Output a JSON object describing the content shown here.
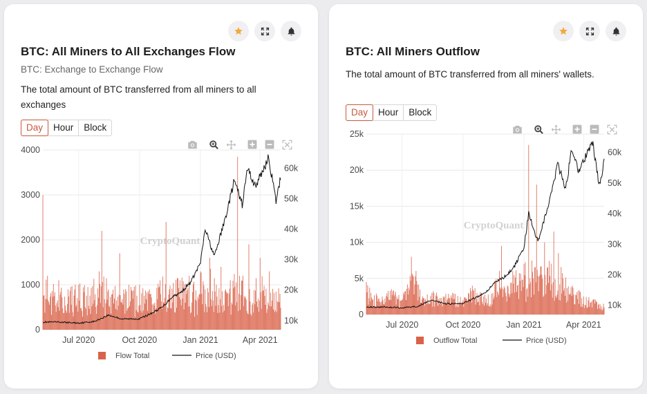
{
  "colors": {
    "bar": "#d9634a",
    "price_line": "#111111",
    "accent": "#c9583c",
    "star": "#f2a93b"
  },
  "header_icons": [
    "star-icon",
    "expand-icon",
    "bell-icon"
  ],
  "modebar_icons": [
    "camera-icon",
    "zoom-icon",
    "pan-icon",
    "zoom-in-icon",
    "zoom-out-icon",
    "autoscale-icon"
  ],
  "cards": [
    {
      "title": "BTC: All Miners to All Exchanges Flow",
      "subtitle": "BTC: Exchange to Exchange Flow",
      "description": "The total amount of BTC transferred from all miners to all exchanges",
      "tabs": [
        "Day",
        "Hour",
        "Block"
      ],
      "active_tab": "Day",
      "watermark": "CryptoQuant",
      "legend": [
        "Flow Total",
        "Price (USD)"
      ],
      "x_ticks": [
        "Jul 2020",
        "Oct 2020",
        "Jan 2021",
        "Apr 2021"
      ],
      "y_left_ticks": [
        "0",
        "1000",
        "2000",
        "3000",
        "4000"
      ],
      "y_right_ticks": [
        "10k",
        "20k",
        "30k",
        "40k",
        "50k",
        "60k"
      ]
    },
    {
      "title": "BTC: All Miners Outflow",
      "subtitle": "",
      "description": "The total amount of BTC transferred from all miners' wallets.",
      "tabs": [
        "Day",
        "Hour",
        "Block"
      ],
      "active_tab": "Day",
      "watermark": "CryptoQuant",
      "legend": [
        "Outflow Total",
        "Price (USD)"
      ],
      "x_ticks": [
        "Jul 2020",
        "Oct 2020",
        "Jan 2021",
        "Apr 2021"
      ],
      "y_left_ticks": [
        "0",
        "5k",
        "10k",
        "15k",
        "20k",
        "25k"
      ],
      "y_right_ticks": [
        "10k",
        "20k",
        "30k",
        "40k",
        "50k",
        "60k"
      ]
    }
  ],
  "chart_data": [
    {
      "type": "bar",
      "title": "BTC: All Miners to All Exchanges Flow",
      "x_range": [
        "2020-05-08",
        "2021-05-02"
      ],
      "ylim": [
        0,
        4000
      ],
      "y2lim": [
        7000,
        66000
      ],
      "grid": true,
      "legend_position": "bottom",
      "series": [
        {
          "name": "Flow Total",
          "kind": "bar",
          "axis": "left",
          "x": [
            "2020-05-08",
            "2020-05-15",
            "2020-06-01",
            "2020-06-15",
            "2020-07-01",
            "2020-07-15",
            "2020-08-01",
            "2020-08-05",
            "2020-08-15",
            "2020-09-01",
            "2020-09-08",
            "2020-09-15",
            "2020-10-01",
            "2020-10-15",
            "2020-11-01",
            "2020-11-10",
            "2020-11-15",
            "2020-12-01",
            "2020-12-15",
            "2021-01-01",
            "2021-01-08",
            "2021-01-15",
            "2021-02-01",
            "2021-02-08",
            "2021-02-15",
            "2021-02-26",
            "2021-03-01",
            "2021-03-15",
            "2021-04-01",
            "2021-04-15",
            "2021-05-01"
          ],
          "values": [
            3000,
            1200,
            1100,
            900,
            1000,
            950,
            1300,
            2200,
            900,
            1700,
            800,
            1000,
            1000,
            800,
            1100,
            2400,
            900,
            1100,
            1200,
            1300,
            900,
            1600,
            1400,
            900,
            1100,
            3850,
            1200,
            1900,
            1600,
            1300,
            800
          ]
        },
        {
          "name": "Price (USD)",
          "kind": "line",
          "axis": "right",
          "x": [
            "2020-05-08",
            "2020-06-01",
            "2020-07-01",
            "2020-07-25",
            "2020-08-15",
            "2020-09-05",
            "2020-10-01",
            "2020-10-20",
            "2020-11-05",
            "2020-11-20",
            "2020-12-01",
            "2020-12-17",
            "2021-01-01",
            "2021-01-08",
            "2021-01-22",
            "2021-02-08",
            "2021-02-21",
            "2021-03-05",
            "2021-03-13",
            "2021-03-25",
            "2021-04-14",
            "2021-04-25",
            "2021-05-02"
          ],
          "values": [
            9500,
            9500,
            9200,
            9700,
            11800,
            10500,
            10600,
            12500,
            14500,
            18000,
            19000,
            22500,
            29000,
            40000,
            31000,
            44000,
            56000,
            48000,
            60000,
            54000,
            63500,
            49000,
            57000
          ]
        }
      ]
    },
    {
      "type": "bar",
      "title": "BTC: All Miners Outflow",
      "x_range": [
        "2020-05-08",
        "2021-05-02"
      ],
      "ylim": [
        0,
        25000
      ],
      "y2lim": [
        7000,
        66000
      ],
      "grid": true,
      "legend_position": "bottom",
      "series": [
        {
          "name": "Outflow Total",
          "kind": "bar",
          "axis": "left",
          "x": [
            "2020-05-08",
            "2020-05-15",
            "2020-06-01",
            "2020-06-15",
            "2020-07-01",
            "2020-07-15",
            "2020-08-01",
            "2020-08-15",
            "2020-09-01",
            "2020-09-15",
            "2020-10-01",
            "2020-10-15",
            "2020-11-01",
            "2020-11-15",
            "2020-11-28",
            "2020-12-01",
            "2020-12-15",
            "2021-01-01",
            "2021-01-08",
            "2021-01-15",
            "2021-01-20",
            "2021-02-01",
            "2021-02-05",
            "2021-02-15",
            "2021-02-22",
            "2021-03-01",
            "2021-03-15",
            "2021-04-01",
            "2021-04-15",
            "2021-05-01"
          ],
          "values": [
            4500,
            3000,
            2500,
            3500,
            2000,
            8000,
            2500,
            3000,
            2500,
            3000,
            2000,
            4000,
            2500,
            3000,
            9500,
            3500,
            6000,
            7000,
            23500,
            5000,
            18000,
            10000,
            6500,
            11500,
            8500,
            5000,
            4000,
            2500,
            2000,
            1500
          ]
        },
        {
          "name": "Price (USD)",
          "kind": "line",
          "axis": "right",
          "x": [
            "2020-05-08",
            "2020-06-01",
            "2020-07-01",
            "2020-07-25",
            "2020-08-15",
            "2020-09-05",
            "2020-10-01",
            "2020-10-20",
            "2020-11-05",
            "2020-11-20",
            "2020-12-01",
            "2020-12-17",
            "2021-01-01",
            "2021-01-08",
            "2021-01-22",
            "2021-02-08",
            "2021-02-21",
            "2021-03-05",
            "2021-03-13",
            "2021-03-25",
            "2021-04-14",
            "2021-04-25",
            "2021-05-02"
          ],
          "values": [
            9500,
            9500,
            9200,
            9700,
            11800,
            10500,
            10600,
            12500,
            14500,
            18000,
            19000,
            22500,
            29000,
            40000,
            31000,
            44000,
            56000,
            48000,
            60000,
            54000,
            63500,
            49000,
            57000
          ]
        }
      ]
    }
  ]
}
